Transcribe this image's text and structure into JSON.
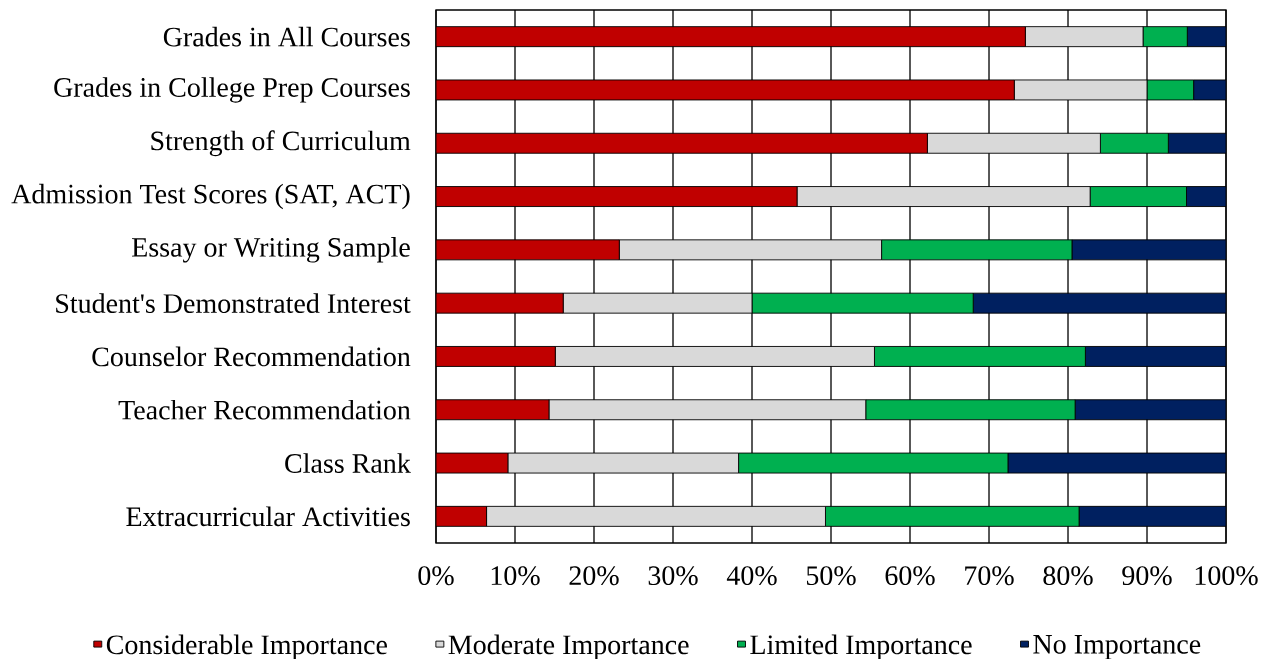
{
  "chart_data": {
    "type": "bar",
    "orientation": "horizontal",
    "stacked": true,
    "categories": [
      "Grades in All Courses",
      "Grades in College Prep Courses",
      "Strength of Curriculum",
      "Admission Test Scores (SAT, ACT)",
      "Essay or Writing Sample",
      "Student's Demonstrated Interest",
      "Counselor Recommendation",
      "Teacher Recommendation",
      "Class Rank",
      "Extracurricular Activities"
    ],
    "series": [
      {
        "name": "Considerable Importance",
        "color": "#c00000",
        "values": [
          74.6,
          73.2,
          62.2,
          45.7,
          23.2,
          16.1,
          15.1,
          14.3,
          9.1,
          6.4
        ]
      },
      {
        "name": "Moderate Importance",
        "color": "#d9d9d9",
        "values": [
          14.9,
          16.8,
          21.9,
          37.1,
          33.2,
          23.9,
          40.4,
          40.1,
          29.2,
          42.9
        ]
      },
      {
        "name": "Limited Importance",
        "color": "#00b050",
        "values": [
          5.6,
          5.9,
          8.6,
          12.2,
          24.1,
          28.0,
          26.7,
          26.5,
          34.1,
          32.1
        ]
      },
      {
        "name": "No Importance",
        "color": "#002060",
        "values": [
          4.9,
          4.1,
          7.3,
          5.0,
          19.5,
          32.0,
          17.8,
          19.1,
          27.6,
          18.6
        ]
      }
    ],
    "xlim": [
      0,
      100
    ],
    "xticks": [
      {
        "value": 0,
        "label": "0%"
      },
      {
        "value": 10,
        "label": "10%"
      },
      {
        "value": 20,
        "label": "20%"
      },
      {
        "value": 30,
        "label": "30%"
      },
      {
        "value": 40,
        "label": "40%"
      },
      {
        "value": 50,
        "label": "50%"
      },
      {
        "value": 60,
        "label": "60%"
      },
      {
        "value": 70,
        "label": "70%"
      },
      {
        "value": 80,
        "label": "80%"
      },
      {
        "value": 90,
        "label": "90%"
      },
      {
        "value": 100,
        "label": "100%"
      }
    ],
    "grid": "x",
    "legend": "bottom"
  }
}
